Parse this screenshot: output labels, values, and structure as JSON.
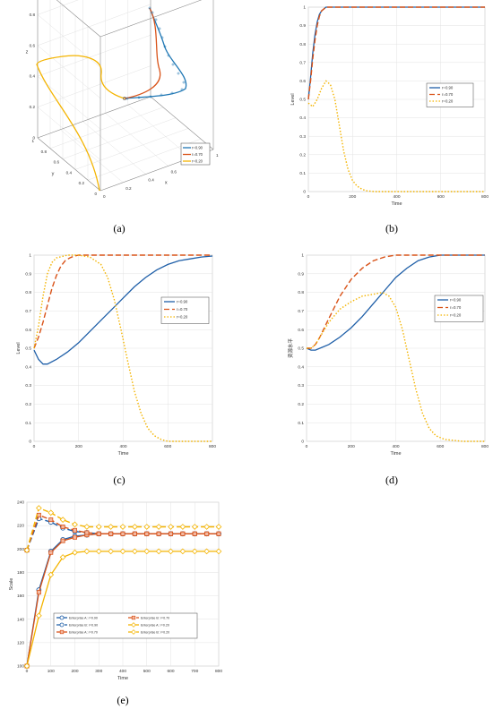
{
  "panels": [
    {
      "caption": "(a)",
      "chart_data": {
        "type": "line",
        "projection": "3d",
        "xlabel": "x",
        "ylabel": "y",
        "zlabel": "z",
        "ticks": [
          "0",
          "0.2",
          "0.4",
          "0.6",
          "0.8",
          "1"
        ],
        "series": [
          {
            "name": "r=0.90",
            "color": "#1f77b4",
            "points": [
              [
                0.0,
                0.5,
                0.5
              ],
              [
                0.3,
                0.6,
                0.55
              ],
              [
                0.7,
                0.75,
                0.7
              ],
              [
                0.95,
                0.9,
                0.9
              ],
              [
                1.0,
                1.0,
                1.0
              ]
            ]
          },
          {
            "name": "r=0.70",
            "color": "#d95319",
            "points": [
              [
                0.0,
                0.5,
                0.5
              ],
              [
                0.2,
                0.65,
                0.6
              ],
              [
                0.5,
                0.85,
                0.85
              ],
              [
                0.9,
                1.0,
                1.0
              ]
            ]
          },
          {
            "name": "r=0.20",
            "color": "#f4b400",
            "points": [
              [
                0.0,
                0.5,
                0.5
              ],
              [
                0.0,
                0.55,
                0.8
              ],
              [
                0.0,
                0.3,
                0.75
              ],
              [
                0.0,
                0.0,
                0.6
              ],
              [
                0.0,
                0.0,
                0.0
              ]
            ]
          }
        ]
      }
    },
    {
      "caption": "(b)",
      "chart_data": {
        "type": "line",
        "xlabel": "Time",
        "ylabel": "Level",
        "xlim": [
          0,
          800
        ],
        "ylim": [
          0,
          1
        ],
        "xticks": [
          "0",
          "200",
          "400",
          "600",
          "800"
        ],
        "yticks": [
          "0",
          "0.1",
          "0.2",
          "0.3",
          "0.4",
          "0.5",
          "0.6",
          "0.7",
          "0.8",
          "0.9",
          "1"
        ],
        "legend": "right-middle",
        "series": [
          {
            "name": "r=0.90",
            "style": "solid",
            "color": "#1f5fa8",
            "x": [
              0,
              10,
              20,
              30,
              40,
              50,
              60,
              70,
              80,
              100,
              150,
              800
            ],
            "y": [
              0.5,
              0.62,
              0.75,
              0.85,
              0.92,
              0.96,
              0.98,
              0.99,
              1.0,
              1.0,
              1.0,
              1.0
            ]
          },
          {
            "name": "r=0.70",
            "style": "dashed",
            "color": "#d95319",
            "x": [
              0,
              10,
              20,
              30,
              40,
              50,
              60,
              70,
              80,
              100,
              150,
              800
            ],
            "y": [
              0.5,
              0.6,
              0.72,
              0.82,
              0.9,
              0.95,
              0.98,
              0.99,
              1.0,
              1.0,
              1.0,
              1.0
            ]
          },
          {
            "name": "r=0.20",
            "style": "dotted",
            "color": "#f4b400",
            "x": [
              0,
              20,
              40,
              60,
              80,
              100,
              120,
              140,
              160,
              180,
              200,
              220,
              240,
              260,
              300,
              400,
              800
            ],
            "y": [
              0.48,
              0.46,
              0.5,
              0.56,
              0.6,
              0.58,
              0.5,
              0.36,
              0.22,
              0.12,
              0.06,
              0.03,
              0.015,
              0.005,
              0.0,
              0.0,
              0.0
            ]
          }
        ]
      }
    },
    {
      "caption": "(c)",
      "chart_data": {
        "type": "line",
        "xlabel": "Time",
        "ylabel": "Level",
        "xlim": [
          0,
          800
        ],
        "ylim": [
          0,
          1
        ],
        "xticks": [
          "0",
          "200",
          "400",
          "600",
          "800"
        ],
        "yticks": [
          "0",
          "0.1",
          "0.2",
          "0.3",
          "0.4",
          "0.5",
          "0.6",
          "0.7",
          "0.8",
          "0.9",
          "1"
        ],
        "legend": "right-middle",
        "series": [
          {
            "name": "r=0.90",
            "style": "solid",
            "color": "#1f5fa8",
            "x": [
              0,
              20,
              40,
              60,
              100,
              150,
              200,
              250,
              300,
              350,
              400,
              450,
              500,
              550,
              600,
              650,
              700,
              750,
              800
            ],
            "y": [
              0.49,
              0.44,
              0.415,
              0.415,
              0.44,
              0.48,
              0.53,
              0.59,
              0.65,
              0.71,
              0.77,
              0.83,
              0.88,
              0.92,
              0.95,
              0.97,
              0.98,
              0.99,
              0.995
            ]
          },
          {
            "name": "r=0.70",
            "style": "dashed",
            "color": "#d95319",
            "x": [
              0,
              20,
              40,
              60,
              80,
              100,
              120,
              140,
              160,
              180,
              200,
              250,
              300,
              800
            ],
            "y": [
              0.5,
              0.56,
              0.64,
              0.73,
              0.82,
              0.89,
              0.94,
              0.97,
              0.985,
              0.995,
              1.0,
              1.0,
              1.0,
              1.0
            ]
          },
          {
            "name": "r=0.20",
            "style": "dotted",
            "color": "#f4b400",
            "x": [
              0,
              20,
              40,
              60,
              80,
              100,
              150,
              200,
              250,
              300,
              330,
              360,
              390,
              420,
              450,
              480,
              510,
              540,
              570,
              600,
              800
            ],
            "y": [
              0.5,
              0.62,
              0.78,
              0.9,
              0.96,
              0.985,
              1.0,
              1.0,
              0.99,
              0.95,
              0.88,
              0.76,
              0.6,
              0.43,
              0.27,
              0.15,
              0.07,
              0.03,
              0.01,
              0.0,
              0.0
            ]
          }
        ]
      }
    },
    {
      "caption": "(d)",
      "chart_data": {
        "type": "line",
        "xlabel": "Time",
        "ylabel": "资源水平",
        "xlim": [
          0,
          800
        ],
        "ylim": [
          0,
          1
        ],
        "xticks": [
          "0",
          "200",
          "400",
          "600",
          "800"
        ],
        "yticks": [
          "0",
          "0.1",
          "0.2",
          "0.3",
          "0.4",
          "0.5",
          "0.6",
          "0.7",
          "0.8",
          "0.9",
          "1"
        ],
        "legend": "right-middle",
        "series": [
          {
            "name": "r=0.90",
            "style": "solid",
            "color": "#1f5fa8",
            "x": [
              0,
              20,
              40,
              60,
              100,
              150,
              200,
              250,
              300,
              350,
              400,
              450,
              500,
              550,
              600,
              650,
              700,
              800
            ],
            "y": [
              0.5,
              0.49,
              0.49,
              0.5,
              0.52,
              0.56,
              0.61,
              0.67,
              0.74,
              0.81,
              0.88,
              0.93,
              0.97,
              0.99,
              1.0,
              1.0,
              1.0,
              1.0
            ]
          },
          {
            "name": "r=0.70",
            "style": "dashed",
            "color": "#d95319",
            "x": [
              0,
              20,
              40,
              60,
              100,
              150,
              200,
              250,
              300,
              350,
              400,
              450,
              500,
              800
            ],
            "y": [
              0.5,
              0.5,
              0.52,
              0.56,
              0.66,
              0.78,
              0.87,
              0.93,
              0.97,
              0.99,
              1.0,
              1.0,
              1.0,
              1.0
            ]
          },
          {
            "name": "r=0.20",
            "style": "dotted",
            "color": "#f4b400",
            "x": [
              0,
              20,
              40,
              60,
              100,
              150,
              200,
              250,
              300,
              340,
              370,
              400,
              430,
              460,
              490,
              520,
              550,
              580,
              620,
              700,
              800
            ],
            "y": [
              0.5,
              0.5,
              0.52,
              0.56,
              0.64,
              0.71,
              0.75,
              0.78,
              0.79,
              0.8,
              0.78,
              0.72,
              0.6,
              0.44,
              0.28,
              0.15,
              0.07,
              0.03,
              0.01,
              0.0,
              0.0
            ]
          }
        ]
      }
    },
    {
      "caption": "(e)",
      "chart_data": {
        "type": "line",
        "xlabel": "Time",
        "ylabel": "Scale",
        "xlim": [
          0,
          800
        ],
        "ylim": [
          100,
          240
        ],
        "xticks": [
          "0",
          "100",
          "200",
          "300",
          "400",
          "500",
          "600",
          "700",
          "800"
        ],
        "yticks": [
          "100",
          "120",
          "140",
          "160",
          "180",
          "200",
          "220",
          "240"
        ],
        "legend": "lower-middle",
        "series": [
          {
            "name": "Enterprise A: r=0.90",
            "style": "solid",
            "color": "#1f5fa8",
            "marker": "circle",
            "x": [
              0,
              50,
              100,
              150,
              200,
              250,
              300,
              350,
              400,
              450,
              500,
              550,
              600,
              650,
              700,
              750,
              800
            ],
            "y": [
              100,
              165,
              198,
              208,
              211,
              212,
              213,
              213,
              213,
              213,
              213,
              213,
              213,
              213,
              213,
              213,
              213
            ]
          },
          {
            "name": "Enterprise B: r=0.90",
            "style": "dashed",
            "color": "#1f5fa8",
            "marker": "circle",
            "x": [
              0,
              50,
              100,
              150,
              200,
              250,
              300,
              350,
              400,
              450,
              500,
              550,
              600,
              650,
              700,
              750,
              800
            ],
            "y": [
              199,
              226,
              223,
              218,
              215,
              214,
              213,
              213,
              213,
              213,
              213,
              213,
              213,
              213,
              213,
              213,
              213
            ]
          },
          {
            "name": "Enterprise A: r=0.70",
            "style": "solid",
            "color": "#d95319",
            "marker": "square",
            "x": [
              0,
              50,
              100,
              150,
              200,
              250,
              300,
              350,
              400,
              450,
              500,
              550,
              600,
              650,
              700,
              750,
              800
            ],
            "y": [
              100,
              163,
              197,
              207,
              210,
              212,
              213,
              213,
              213,
              213,
              213,
              213,
              213,
              213,
              213,
              213,
              213
            ]
          },
          {
            "name": "Enterprise B: r=0.70",
            "style": "dashed",
            "color": "#d95319",
            "marker": "square",
            "x": [
              0,
              50,
              100,
              150,
              200,
              250,
              300,
              350,
              400,
              450,
              500,
              550,
              600,
              650,
              700,
              750,
              800
            ],
            "y": [
              199,
              229,
              225,
              219,
              216,
              214,
              213,
              213,
              213,
              213,
              213,
              213,
              213,
              213,
              213,
              213,
              213
            ]
          },
          {
            "name": "Enterprise A: r=0.20",
            "style": "solid",
            "color": "#f4b400",
            "marker": "diamond",
            "x": [
              0,
              50,
              100,
              150,
              200,
              250,
              300,
              350,
              400,
              450,
              500,
              550,
              600,
              650,
              700,
              750,
              800
            ],
            "y": [
              100,
              143,
              178,
              193,
              197,
              198,
              198,
              198,
              198,
              198,
              198,
              198,
              198,
              198,
              198,
              198,
              198
            ]
          },
          {
            "name": "Enterprise B: r=0.20",
            "style": "dashed",
            "color": "#f4b400",
            "marker": "diamond",
            "x": [
              0,
              50,
              100,
              150,
              200,
              250,
              300,
              350,
              400,
              450,
              500,
              550,
              600,
              650,
              700,
              750,
              800
            ],
            "y": [
              199,
              235,
              231,
              225,
              221,
              219,
              219,
              219,
              219,
              219,
              219,
              219,
              219,
              219,
              219,
              219,
              219
            ]
          }
        ]
      }
    }
  ]
}
